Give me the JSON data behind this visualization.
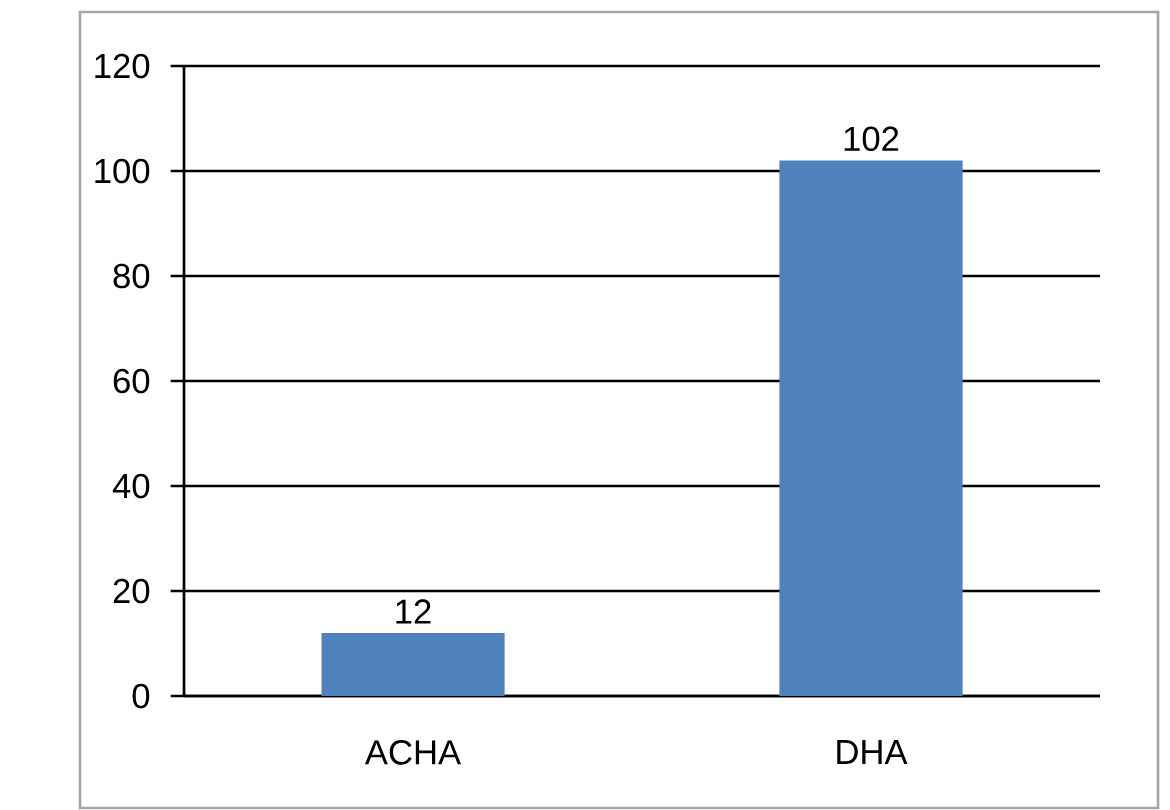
{
  "chart_data": {
    "type": "bar",
    "categories": [
      "ACHA",
      "DHA"
    ],
    "values": [
      12,
      102
    ],
    "color": "#4f81bd",
    "ylim": [
      0,
      120
    ],
    "yticks": [
      0,
      20,
      40,
      60,
      80,
      100,
      120
    ],
    "grid": "y",
    "data_labels": true
  }
}
